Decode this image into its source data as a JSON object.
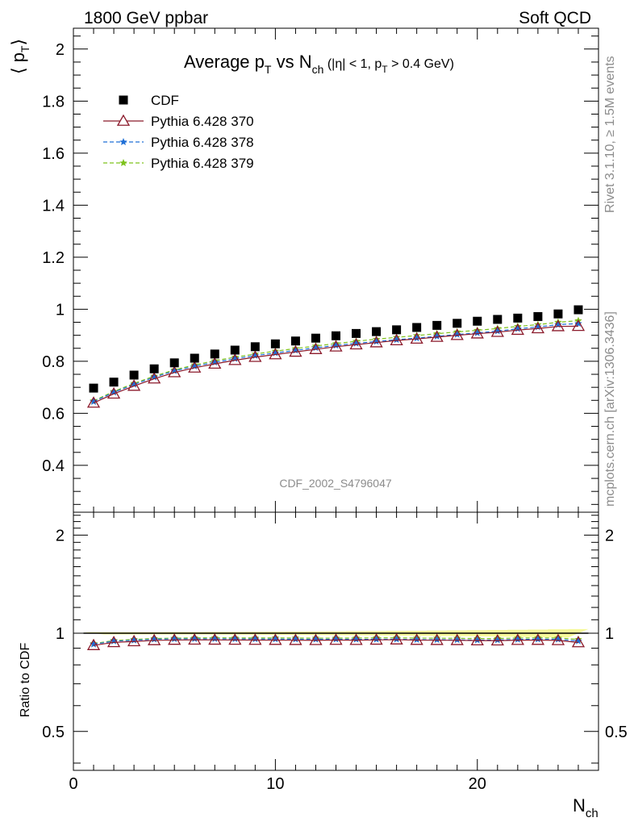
{
  "header": {
    "left": "1800 GeV ppbar",
    "right": "Soft QCD"
  },
  "side_labels": {
    "rivet": "Rivet 3.1.10, ≥ 1.5M events",
    "mcplots": "mcplots.cern.ch [arXiv:1306.3436]"
  },
  "chart_data": {
    "type": "scatter",
    "analysis_id": "CDF_2002_S4796047",
    "title": {
      "main": "Average p",
      "main_sub": "T",
      "vs": " vs N",
      "vs_sub": "ch",
      "cuts_a": " (|η| < 1, p",
      "cuts_sub": "T",
      "cuts_b": " > 0.4 GeV)"
    },
    "ylabel": {
      "open": "⟨ p",
      "sub": "T",
      "close": "⟩"
    },
    "xlabel": {
      "main": "N",
      "sub": "ch"
    },
    "ratio_ylabel": "Ratio to CDF",
    "xlim": [
      0,
      26
    ],
    "ylim": [
      0.22,
      2.08
    ],
    "ratio_ylim": [
      0.38,
      2.35
    ],
    "ratio_log": true,
    "x_ticks": [
      0,
      10,
      20
    ],
    "x_tick_labels": [
      "0",
      "10",
      "20"
    ],
    "y_ticks": [
      0.4,
      0.6,
      0.8,
      1,
      1.2,
      1.4,
      1.6,
      1.8,
      2
    ],
    "y_tick_labels": [
      "0.4",
      "0.6",
      "0.8",
      "1",
      "1.2",
      "1.4",
      "1.6",
      "1.8",
      "2"
    ],
    "ratio_ticks": [
      0.5,
      1,
      2
    ],
    "ratio_tick_labels": [
      "0.5",
      "1",
      "2"
    ],
    "legend_position": "top-left",
    "x": [
      1,
      2,
      3,
      4,
      5,
      6,
      7,
      8,
      9,
      10,
      11,
      12,
      13,
      14,
      15,
      16,
      17,
      18,
      19,
      20,
      21,
      22,
      23,
      24,
      25
    ],
    "series": [
      {
        "name": "CDF",
        "style": "data",
        "color": "#000000",
        "values": [
          0.697,
          0.72,
          0.747,
          0.771,
          0.794,
          0.812,
          0.828,
          0.843,
          0.856,
          0.867,
          0.878,
          0.889,
          0.898,
          0.907,
          0.914,
          0.921,
          0.93,
          0.938,
          0.946,
          0.954,
          0.961,
          0.966,
          0.972,
          0.982,
          0.998
        ]
      },
      {
        "name": "Pythia 6.428 370",
        "style": "triangle",
        "color": "#8b1a2b",
        "values": [
          0.64,
          0.675,
          0.705,
          0.733,
          0.757,
          0.775,
          0.79,
          0.804,
          0.816,
          0.826,
          0.836,
          0.846,
          0.856,
          0.864,
          0.872,
          0.88,
          0.886,
          0.893,
          0.9,
          0.906,
          0.912,
          0.92,
          0.926,
          0.934,
          0.935
        ]
      },
      {
        "name": "Pythia 6.428 378",
        "style": "star-dashed",
        "color": "#1f6fd6",
        "values": [
          0.645,
          0.681,
          0.711,
          0.739,
          0.763,
          0.781,
          0.796,
          0.81,
          0.822,
          0.832,
          0.842,
          0.852,
          0.861,
          0.869,
          0.876,
          0.883,
          0.889,
          0.896,
          0.903,
          0.909,
          0.916,
          0.925,
          0.932,
          0.941,
          0.945
        ]
      },
      {
        "name": "Pythia 6.428 379",
        "style": "star-dashed",
        "color": "#7dc21c",
        "values": [
          0.648,
          0.684,
          0.715,
          0.743,
          0.767,
          0.786,
          0.802,
          0.816,
          0.828,
          0.839,
          0.849,
          0.859,
          0.868,
          0.877,
          0.885,
          0.892,
          0.899,
          0.906,
          0.913,
          0.919,
          0.926,
          0.934,
          0.941,
          0.95,
          0.956
        ]
      }
    ]
  }
}
